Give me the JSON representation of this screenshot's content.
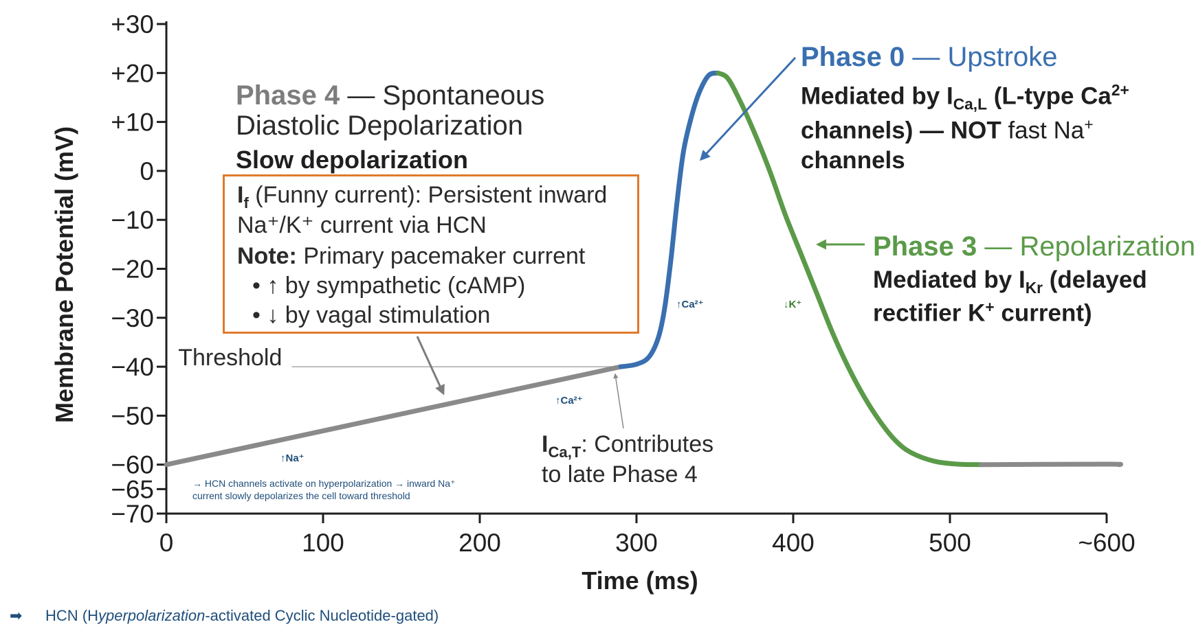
{
  "colors": {
    "phase4": "#8a8a8a",
    "phase0": "#3a6fb0",
    "phase3": "#5a9a48",
    "box_border": "#e07a2c",
    "axis": "#1f1f1f",
    "threshold_line": "#bdbdbd",
    "note_blue": "#1f4e7a"
  },
  "chart_data": {
    "type": "line",
    "xlabel": "Time (ms)",
    "ylabel": "Membrane Potential (mV)",
    "xlim": [
      0,
      600
    ],
    "ylim": [
      -70,
      30
    ],
    "x_ticks": [
      {
        "value": 0,
        "label": "0"
      },
      {
        "value": 100,
        "label": "100"
      },
      {
        "value": 200,
        "label": "200"
      },
      {
        "value": 300,
        "label": "300"
      },
      {
        "value": 400,
        "label": "400"
      },
      {
        "value": 500,
        "label": "500"
      },
      {
        "value": 600,
        "label": "~600"
      }
    ],
    "y_ticks": [
      {
        "value": 30,
        "label": "+30"
      },
      {
        "value": 20,
        "label": "+20"
      },
      {
        "value": 10,
        "label": "+10"
      },
      {
        "value": 0,
        "label": "0"
      },
      {
        "value": -10,
        "label": "−10"
      },
      {
        "value": -20,
        "label": "−20"
      },
      {
        "value": -30,
        "label": "−30"
      },
      {
        "value": -40,
        "label": "−40"
      },
      {
        "value": -50,
        "label": "−50"
      },
      {
        "value": -60,
        "label": "−60"
      },
      {
        "value": -65,
        "label": "−65"
      },
      {
        "value": -70,
        "label": "−70"
      }
    ],
    "threshold": {
      "label": "Threshold",
      "y": -40,
      "x_start": 80,
      "x_end": 290
    },
    "series": [
      {
        "phase": "phase4",
        "color": "#8a8a8a",
        "points": [
          [
            0,
            -60
          ],
          [
            290,
            -40
          ]
        ]
      },
      {
        "phase": "phase0",
        "color": "#3a6fb0",
        "points": [
          [
            290,
            -40
          ],
          [
            300,
            -39.5
          ],
          [
            308,
            -38
          ],
          [
            314,
            -34
          ],
          [
            318,
            -28
          ],
          [
            322,
            -18
          ],
          [
            326,
            -6
          ],
          [
            330,
            4
          ],
          [
            335,
            11
          ],
          [
            340,
            16
          ],
          [
            346,
            19.5
          ],
          [
            352,
            20
          ]
        ]
      },
      {
        "phase": "phase3",
        "color": "#5a9a48",
        "points": [
          [
            352,
            20
          ],
          [
            358,
            19
          ],
          [
            365,
            15
          ],
          [
            375,
            8
          ],
          [
            385,
            0
          ],
          [
            395,
            -9
          ],
          [
            405,
            -17
          ],
          [
            415,
            -25
          ],
          [
            425,
            -33
          ],
          [
            435,
            -40
          ],
          [
            445,
            -46
          ],
          [
            455,
            -51
          ],
          [
            465,
            -55
          ],
          [
            475,
            -57.5
          ],
          [
            490,
            -59.3
          ],
          [
            505,
            -59.9
          ],
          [
            520,
            -60
          ]
        ]
      },
      {
        "phase": "phase4",
        "color": "#8a8a8a",
        "points": [
          [
            520,
            -60
          ],
          [
            600,
            -59.9
          ],
          [
            608,
            -60
          ]
        ]
      }
    ]
  },
  "annotations": {
    "phase4_title_bold": "Phase 4",
    "phase4_title_rest": " — Spontaneous",
    "phase4_title_line2": "Diastolic Depolarization",
    "phase4_subtitle": "Slow depolarization",
    "box": {
      "line1_prefix": "I",
      "line1_sub": "f",
      "line1_rest": " (Funny current): Persistent inward",
      "line2": "Na⁺/K⁺ current via HCN",
      "line3_bold": "Note:",
      "line3_rest": " Primary pacemaker current",
      "bullet1": "• ↑ by sympathetic (cAMP)",
      "bullet2": "• ↓ by vagal stimulation"
    },
    "phase0_bold": "Phase 0",
    "phase0_rest": " — Upstroke",
    "phase0_line1_a": "Mediated by I",
    "phase0_line1_sub": "Ca,L",
    "phase0_line1_b": " (L-type Ca",
    "phase0_line1_sup": "2+",
    "phase0_line2_a": "channels) — NOT",
    "phase0_line2_b": " fast Na",
    "phase0_line2_sup": "+",
    "phase0_line3": "channels",
    "phase3_bold": "Phase 3",
    "phase3_rest": " — Repolarization",
    "phase3_line1_a": "Mediated by I",
    "phase3_line1_sub": "Kr",
    "phase3_line1_b": " (delayed",
    "phase3_line2_a": "rectifier K",
    "phase3_line2_sup": "+",
    "phase3_line2_b": " current)",
    "icat_prefix": "I",
    "icat_sub": "Ca,T",
    "icat_rest": ": Contributes",
    "icat_line2": "to late Phase 4",
    "ion_na": "↑Na⁺",
    "ion_ca_late": "↑Ca²⁺",
    "ion_ca_up": "↑Ca²⁺",
    "ion_k": "↓K⁺",
    "hcn_note_line1": "→ HCN channels activate on hyperpolarization → inward Na⁺",
    "hcn_note_line2": "current slowly depolarizes the cell toward threshold"
  },
  "footer": {
    "arrow": "➡",
    "text_a": "HCN (H",
    "text_italic": "yperpolarization",
    "text_b": "-activated Cyclic Nucleotide-gated)"
  }
}
